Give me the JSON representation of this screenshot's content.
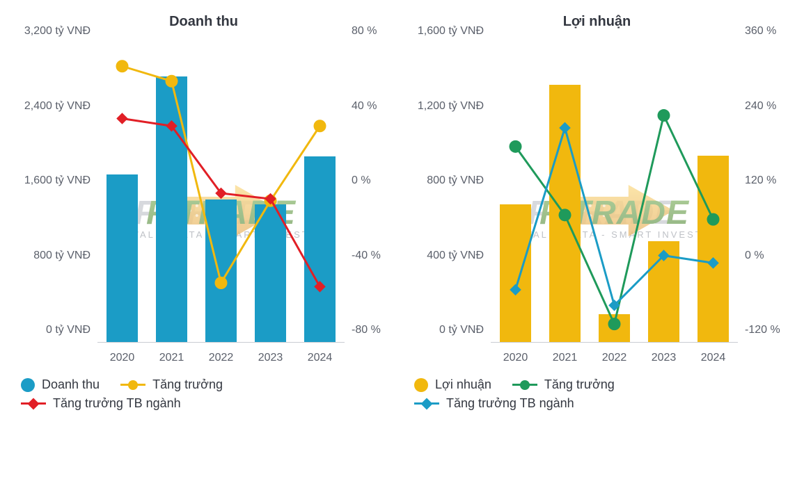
{
  "watermark": {
    "main": "FITRADE",
    "sub": "VALID DATA - SMART INVEST",
    "arrow_color_top": "#f2b22a",
    "arrow_color_bottom": "#d98a13"
  },
  "chart1": {
    "title": "Doanh thu",
    "type": "bar+lines",
    "categories": [
      "2020",
      "2021",
      "2022",
      "2023",
      "2024"
    ],
    "y_left": {
      "min": 0,
      "max": 3200,
      "ticks": [
        0,
        800,
        1600,
        2400,
        3200
      ],
      "labels": [
        "0 tỷ VNĐ",
        "800 tỷ VNĐ",
        "1,600 tỷ VNĐ",
        "2,400 tỷ VNĐ",
        "3,200 tỷ VNĐ"
      ],
      "axis_color": "#5a5f6a"
    },
    "y_right": {
      "min": -80,
      "max": 80,
      "ticks": [
        -80,
        -40,
        0,
        40,
        80
      ],
      "labels": [
        "-80 %",
        "-40 %",
        "0 %",
        "40 %",
        "80 %"
      ],
      "axis_color": "#5a5f6a"
    },
    "bars": {
      "label": "Doanh thu",
      "color": "#1b9cc6",
      "values": [
        1800,
        2850,
        1530,
        1480,
        1990
      ],
      "width_ratio": 0.62
    },
    "lines": [
      {
        "label": "Tăng trưởng",
        "color": "#f1b80e",
        "marker": "circle",
        "marker_size": 9,
        "values": [
          68,
          60,
          -48,
          -4,
          36
        ]
      },
      {
        "label": "Tăng trưởng TB ngành",
        "color": "#e11f26",
        "marker": "diamond",
        "marker_size": 9,
        "values": [
          40,
          36,
          0,
          -3,
          -50
        ]
      }
    ],
    "line_width": 3,
    "background_color": "#ffffff",
    "label_fontsize": 16,
    "title_fontsize": 20
  },
  "chart2": {
    "title": "Lợi nhuận",
    "type": "bar+lines",
    "categories": [
      "2020",
      "2021",
      "2022",
      "2023",
      "2024"
    ],
    "y_left": {
      "min": 0,
      "max": 1600,
      "ticks": [
        0,
        400,
        800,
        1200,
        1600
      ],
      "labels": [
        "0 tỷ VNĐ",
        "400 tỷ VNĐ",
        "800 tỷ VNĐ",
        "1,200 tỷ VNĐ",
        "1,600 tỷ VNĐ"
      ],
      "axis_color": "#5a5f6a"
    },
    "y_right": {
      "min": -120,
      "max": 360,
      "ticks": [
        -120,
        0,
        120,
        240,
        360
      ],
      "labels": [
        "-120 %",
        "0 %",
        "120 %",
        "240 %",
        "360 %"
      ],
      "axis_color": "#5a5f6a"
    },
    "bars": {
      "label": "Lợi nhuận",
      "color": "#f1b80e",
      "values": [
        740,
        1380,
        150,
        540,
        1000
      ],
      "width_ratio": 0.62
    },
    "lines": [
      {
        "label": "Tăng trưởng",
        "color": "#1f9a5b",
        "marker": "circle",
        "marker_size": 9,
        "values": [
          195,
          85,
          -90,
          245,
          78
        ]
      },
      {
        "label": "Tăng trưởng TB ngành",
        "color": "#1b9cc6",
        "marker": "diamond",
        "marker_size": 9,
        "values": [
          -35,
          225,
          -60,
          20,
          8
        ]
      }
    ],
    "line_width": 3,
    "background_color": "#ffffff",
    "label_fontsize": 16,
    "title_fontsize": 20
  }
}
